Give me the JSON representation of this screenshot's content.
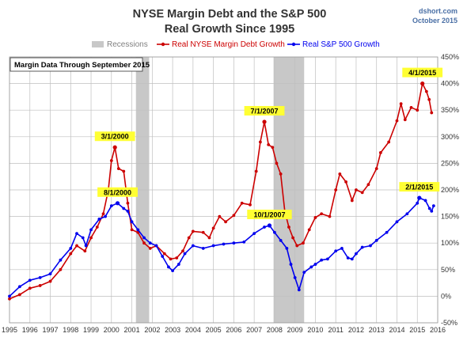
{
  "chart_data": {
    "type": "line",
    "title": "NYSE Margin Debt and the S&P 500",
    "subtitle": "Real Growth Since 1995",
    "credit": [
      "dshort.com",
      "October 2015"
    ],
    "note": "Margin Data Through September 2015",
    "xlabel": "",
    "ylabel": "",
    "xlim": [
      1995,
      2016
    ],
    "ylim": [
      -50,
      450
    ],
    "x_ticks": [
      1995,
      1996,
      1997,
      1998,
      1999,
      2000,
      2001,
      2002,
      2003,
      2004,
      2005,
      2006,
      2007,
      2008,
      2009,
      2010,
      2011,
      2012,
      2013,
      2014,
      2015,
      2016
    ],
    "y_ticks": [
      -50,
      0,
      50,
      100,
      150,
      200,
      250,
      300,
      350,
      400,
      450
    ],
    "y_tick_labels": [
      "-50%",
      "0%",
      "50%",
      "100%",
      "150%",
      "200%",
      "250%",
      "300%",
      "350%",
      "400%",
      "450%"
    ],
    "grid": true,
    "legend": {
      "placement": "top",
      "entries": [
        "Recessions",
        "Real NYSE Margin Debt Growth",
        "Real S&P 500 Growth"
      ]
    },
    "recessions": [
      {
        "start": 2001.2,
        "end": 2001.85
      },
      {
        "start": 2007.95,
        "end": 2009.45
      }
    ],
    "series": [
      {
        "name": "Real NYSE Margin Debt Growth",
        "color": "#cc0000",
        "points": [
          [
            1995.0,
            -5
          ],
          [
            1995.5,
            3
          ],
          [
            1996.0,
            15
          ],
          [
            1996.5,
            20
          ],
          [
            1997.0,
            28
          ],
          [
            1997.5,
            50
          ],
          [
            1998.0,
            80
          ],
          [
            1998.3,
            95
          ],
          [
            1998.7,
            85
          ],
          [
            1999.0,
            110
          ],
          [
            1999.3,
            130
          ],
          [
            1999.6,
            155
          ],
          [
            1999.85,
            200
          ],
          [
            2000.0,
            255
          ],
          [
            2000.17,
            280
          ],
          [
            2000.35,
            240
          ],
          [
            2000.6,
            235
          ],
          [
            2000.8,
            175
          ],
          [
            2001.0,
            125
          ],
          [
            2001.3,
            120
          ],
          [
            2001.6,
            100
          ],
          [
            2001.9,
            90
          ],
          [
            2002.2,
            95
          ],
          [
            2002.6,
            80
          ],
          [
            2002.9,
            70
          ],
          [
            2003.2,
            72
          ],
          [
            2003.5,
            85
          ],
          [
            2003.8,
            110
          ],
          [
            2004.0,
            122
          ],
          [
            2004.5,
            120
          ],
          [
            2004.8,
            110
          ],
          [
            2005.0,
            128
          ],
          [
            2005.3,
            150
          ],
          [
            2005.6,
            140
          ],
          [
            2006.0,
            152
          ],
          [
            2006.4,
            175
          ],
          [
            2006.8,
            172
          ],
          [
            2007.1,
            235
          ],
          [
            2007.3,
            290
          ],
          [
            2007.5,
            328
          ],
          [
            2007.7,
            285
          ],
          [
            2007.9,
            280
          ],
          [
            2008.1,
            250
          ],
          [
            2008.3,
            230
          ],
          [
            2008.5,
            160
          ],
          [
            2008.7,
            130
          ],
          [
            2008.9,
            110
          ],
          [
            2009.1,
            95
          ],
          [
            2009.4,
            100
          ],
          [
            2009.7,
            125
          ],
          [
            2010.0,
            148
          ],
          [
            2010.3,
            155
          ],
          [
            2010.7,
            150
          ],
          [
            2011.0,
            200
          ],
          [
            2011.2,
            230
          ],
          [
            2011.5,
            215
          ],
          [
            2011.8,
            180
          ],
          [
            2012.0,
            200
          ],
          [
            2012.3,
            195
          ],
          [
            2012.6,
            210
          ],
          [
            2013.0,
            240
          ],
          [
            2013.2,
            270
          ],
          [
            2013.6,
            290
          ],
          [
            2014.0,
            330
          ],
          [
            2014.2,
            362
          ],
          [
            2014.4,
            332
          ],
          [
            2014.7,
            355
          ],
          [
            2015.0,
            350
          ],
          [
            2015.25,
            400
          ],
          [
            2015.45,
            385
          ],
          [
            2015.58,
            370
          ],
          [
            2015.7,
            345
          ]
        ]
      },
      {
        "name": "Real S&P 500 Growth",
        "color": "#0000ee",
        "points": [
          [
            1995.0,
            0
          ],
          [
            1995.5,
            18
          ],
          [
            1996.0,
            30
          ],
          [
            1996.5,
            35
          ],
          [
            1997.0,
            42
          ],
          [
            1997.5,
            68
          ],
          [
            1998.0,
            90
          ],
          [
            1998.3,
            118
          ],
          [
            1998.6,
            110
          ],
          [
            1998.75,
            95
          ],
          [
            1999.0,
            125
          ],
          [
            1999.4,
            145
          ],
          [
            1999.7,
            150
          ],
          [
            2000.0,
            170
          ],
          [
            2000.3,
            175
          ],
          [
            2000.6,
            165
          ],
          [
            2000.8,
            160
          ],
          [
            2001.0,
            140
          ],
          [
            2001.3,
            125
          ],
          [
            2001.6,
            110
          ],
          [
            2001.9,
            100
          ],
          [
            2002.2,
            95
          ],
          [
            2002.5,
            75
          ],
          [
            2002.8,
            55
          ],
          [
            2003.0,
            48
          ],
          [
            2003.3,
            60
          ],
          [
            2003.6,
            80
          ],
          [
            2004.0,
            95
          ],
          [
            2004.5,
            90
          ],
          [
            2005.0,
            95
          ],
          [
            2005.5,
            98
          ],
          [
            2006.0,
            100
          ],
          [
            2006.5,
            102
          ],
          [
            2007.0,
            118
          ],
          [
            2007.5,
            130
          ],
          [
            2007.75,
            133
          ],
          [
            2008.0,
            120
          ],
          [
            2008.3,
            105
          ],
          [
            2008.6,
            90
          ],
          [
            2008.8,
            60
          ],
          [
            2009.0,
            35
          ],
          [
            2009.2,
            12
          ],
          [
            2009.45,
            45
          ],
          [
            2009.8,
            55
          ],
          [
            2010.0,
            60
          ],
          [
            2010.3,
            68
          ],
          [
            2010.6,
            70
          ],
          [
            2011.0,
            85
          ],
          [
            2011.3,
            90
          ],
          [
            2011.6,
            72
          ],
          [
            2011.8,
            70
          ],
          [
            2012.0,
            80
          ],
          [
            2012.3,
            92
          ],
          [
            2012.7,
            95
          ],
          [
            2013.0,
            105
          ],
          [
            2013.5,
            120
          ],
          [
            2014.0,
            140
          ],
          [
            2014.5,
            155
          ],
          [
            2015.0,
            175
          ],
          [
            2015.1,
            185
          ],
          [
            2015.4,
            180
          ],
          [
            2015.6,
            165
          ],
          [
            2015.7,
            160
          ],
          [
            2015.8,
            170
          ]
        ]
      }
    ],
    "annotations": [
      {
        "label": "3/1/2000",
        "series": 0,
        "x": 2000.17,
        "y": 280
      },
      {
        "label": "8/1/2000",
        "series": 1,
        "x": 2000.3,
        "y": 175
      },
      {
        "label": "7/1/2007",
        "series": 0,
        "x": 2007.5,
        "y": 328
      },
      {
        "label": "10/1/2007",
        "series": 1,
        "x": 2007.75,
        "y": 133
      },
      {
        "label": "4/1/2015",
        "series": 0,
        "x": 2015.25,
        "y": 400
      },
      {
        "label": "2/1/2015",
        "series": 1,
        "x": 2015.1,
        "y": 185
      }
    ]
  }
}
